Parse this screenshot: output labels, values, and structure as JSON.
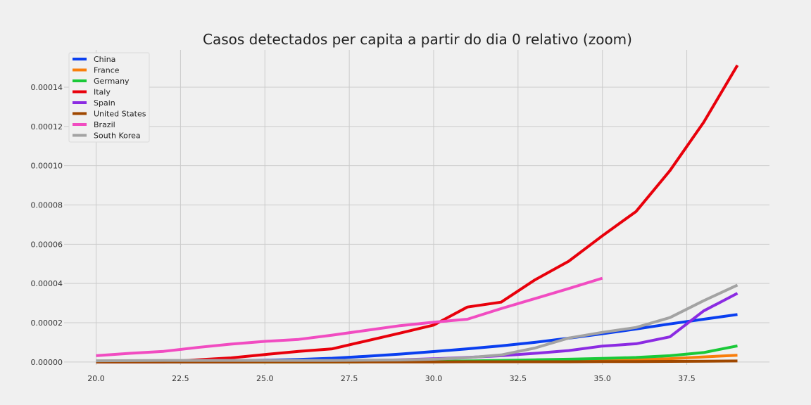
{
  "chart_data": {
    "type": "line",
    "title": "Casos detectados per capita a partir do dia 0 relativo (zoom)",
    "xlabel": "",
    "ylabel": "",
    "xlim": [
      19.05,
      39.95
    ],
    "ylim": [
      -1.5e-06,
      0.000159
    ],
    "xticks": [
      20.0,
      22.5,
      25.0,
      27.5,
      30.0,
      32.5,
      35.0,
      37.5
    ],
    "xtick_labels": [
      "20.0",
      "22.5",
      "25.0",
      "27.5",
      "30.0",
      "32.5",
      "35.0",
      "37.5"
    ],
    "yticks": [
      0,
      2e-05,
      4e-05,
      6e-05,
      8e-05,
      0.0001,
      0.00012,
      0.00014
    ],
    "ytick_labels": [
      "0.00000",
      "0.00002",
      "0.00004",
      "0.00006",
      "0.00008",
      "0.00010",
      "0.00012",
      "0.00014"
    ],
    "grid": true,
    "legend_position": "top-left",
    "series": [
      {
        "name": "China",
        "color": "#0a3ff0",
        "x": [
          20,
          21,
          22,
          23,
          24,
          25,
          26,
          27,
          28,
          29,
          30,
          31,
          32,
          33,
          34,
          35,
          36,
          37,
          38,
          39
        ],
        "y": [
          1e-07,
          2e-07,
          3e-07,
          4e-07,
          6e-07,
          9e-07,
          1.3e-06,
          1.9e-06,
          2.9e-06,
          4e-06,
          5.3e-06,
          6.7e-06,
          8.2e-06,
          1e-05,
          1.21e-05,
          1.44e-05,
          1.68e-05,
          1.94e-05,
          2.18e-05,
          2.42e-05
        ]
      },
      {
        "name": "France",
        "color": "#f97e0b",
        "x": [
          20,
          21,
          22,
          23,
          24,
          25,
          26,
          27,
          28,
          29,
          30,
          31,
          32,
          33,
          34,
          35,
          36,
          37,
          38,
          39
        ],
        "y": [
          0,
          0,
          0,
          0,
          0,
          0,
          0,
          0,
          1e-07,
          1e-07,
          2e-07,
          3e-07,
          4e-07,
          5e-07,
          6e-07,
          8e-07,
          1.1e-06,
          1.7e-06,
          2.6e-06,
          3.4e-06
        ]
      },
      {
        "name": "Germany",
        "color": "#1ac938",
        "x": [
          20,
          21,
          22,
          23,
          24,
          25,
          26,
          27,
          28,
          29,
          30,
          31,
          32,
          33,
          34,
          35,
          36,
          37,
          38,
          39
        ],
        "y": [
          0,
          0,
          0,
          0,
          0,
          0,
          0,
          0,
          1e-07,
          2e-07,
          3e-07,
          5e-07,
          8e-07,
          1.1e-06,
          1.4e-06,
          1.8e-06,
          2.3e-06,
          3.2e-06,
          4.8e-06,
          8.2e-06
        ]
      },
      {
        "name": "Italy",
        "color": "#e8000b",
        "x": [
          20,
          21,
          22,
          23,
          24,
          25,
          26,
          27,
          28,
          29,
          30,
          31,
          32,
          33,
          34,
          35,
          36,
          37,
          38,
          39
        ],
        "y": [
          0,
          0,
          0,
          1.1e-06,
          2.1e-06,
          3.8e-06,
          5.4e-06,
          6.7e-06,
          1.07e-05,
          1.47e-05,
          1.88e-05,
          2.8e-05,
          3.05e-05,
          4.18e-05,
          5.13e-05,
          6.43e-05,
          7.67e-05,
          9.75e-05,
          0.0001221,
          0.0001512
        ]
      },
      {
        "name": "Spain",
        "color": "#8b2be2",
        "x": [
          20,
          21,
          22,
          23,
          24,
          25,
          26,
          27,
          28,
          29,
          30,
          31,
          32,
          33,
          34,
          35,
          36,
          37,
          38,
          39
        ],
        "y": [
          0,
          0,
          0,
          0,
          0,
          1e-07,
          2e-07,
          4e-07,
          7e-07,
          1.1e-06,
          1.6e-06,
          2.3e-06,
          3.2e-06,
          4.4e-06,
          5.8e-06,
          8.1e-06,
          9.3e-06,
          1.28e-05,
          2.6e-05,
          3.5e-05
        ]
      },
      {
        "name": "United States",
        "color": "#9f4800",
        "x": [
          20,
          21,
          22,
          23,
          24,
          25,
          26,
          27,
          28,
          29,
          30,
          31,
          32,
          33,
          34,
          35,
          36,
          37,
          38,
          39
        ],
        "y": [
          0,
          0,
          0,
          0,
          0,
          0,
          0,
          0,
          0,
          0,
          0,
          1e-07,
          1e-07,
          1e-07,
          1e-07,
          2e-07,
          2e-07,
          3e-07,
          4e-07,
          5e-07
        ]
      },
      {
        "name": "Brazil",
        "color": "#f14cc1",
        "x": [
          20,
          21,
          22,
          23,
          24,
          25,
          26,
          27,
          28,
          29,
          30,
          31,
          32,
          33,
          34,
          35
        ],
        "y": [
          3.2e-06,
          4.4e-06,
          5.4e-06,
          7.4e-06,
          9.1e-06,
          1.05e-05,
          1.15e-05,
          1.37e-05,
          1.61e-05,
          1.85e-05,
          2.03e-05,
          2.18e-05,
          2.72e-05,
          3.23e-05,
          3.74e-05,
          4.27e-05
        ]
      },
      {
        "name": "South Korea",
        "color": "#a3a3a3",
        "x": [
          20,
          21,
          22,
          23,
          24,
          25,
          26,
          27,
          28,
          29,
          30,
          31,
          32,
          33,
          34,
          35,
          36,
          37,
          38,
          39
        ],
        "y": [
          6e-07,
          7e-07,
          8e-07,
          8e-07,
          8e-07,
          8e-07,
          8e-07,
          8e-07,
          9e-07,
          1e-06,
          1.4e-06,
          2.2e-06,
          3.6e-06,
          7.1e-06,
          1.22e-05,
          1.51e-05,
          1.76e-05,
          2.26e-05,
          3.12e-05,
          3.92e-05
        ]
      }
    ]
  }
}
